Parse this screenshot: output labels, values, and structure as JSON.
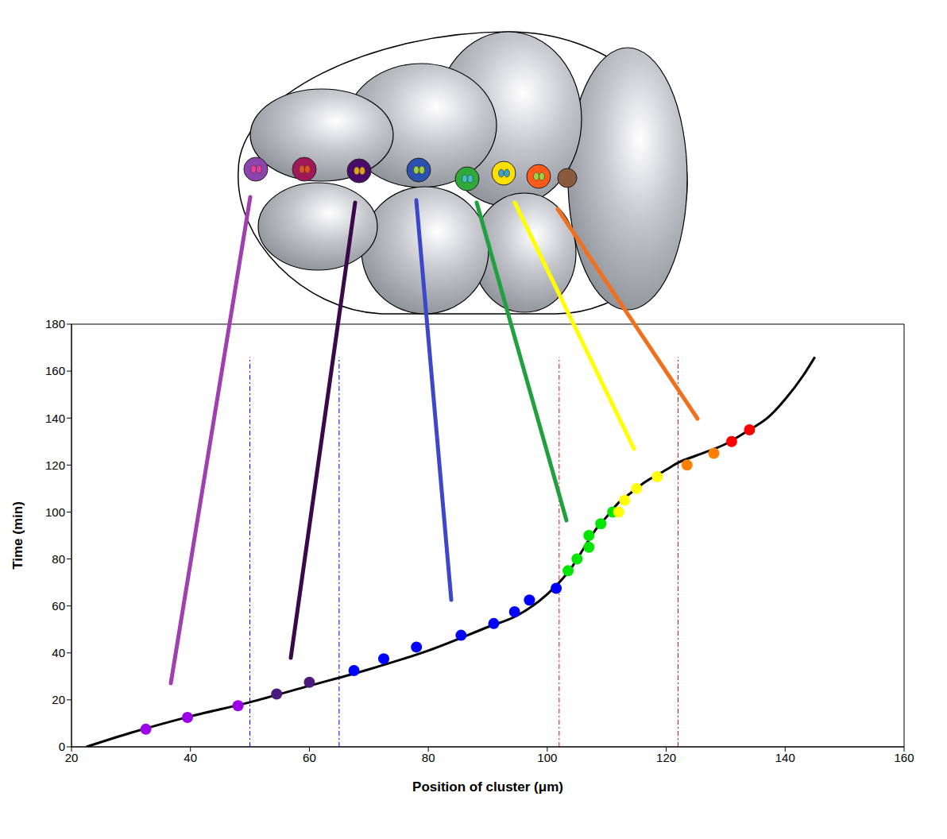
{
  "chart_data": {
    "type": "scatter",
    "x_label": "Position of cluster (μm)",
    "y_label": "Time (min)",
    "xlim": [
      20,
      160
    ],
    "xticks": [
      20,
      40,
      60,
      80,
      100,
      120,
      140,
      160
    ],
    "ylim": [
      0,
      180
    ],
    "yticks": [
      0,
      20,
      40,
      60,
      80,
      100,
      120,
      140,
      160,
      180
    ],
    "grid": false,
    "series": [
      {
        "type": "line",
        "color": "#000000",
        "line_style": "solid",
        "marker": "none",
        "x": [
          22.5,
          30,
          40,
          50,
          60,
          70,
          80,
          90,
          95,
          100,
          102,
          104,
          106,
          108,
          110,
          112,
          114,
          116,
          120,
          122,
          125,
          130,
          134,
          137,
          140,
          143,
          145
        ],
        "values": [
          0,
          6,
          13,
          19,
          26,
          33,
          41,
          51,
          56,
          65,
          70,
          76,
          84,
          92,
          98,
          104,
          108,
          112,
          118,
          121,
          124,
          129,
          135,
          140,
          148,
          158,
          166
        ]
      },
      {
        "type": "scatter",
        "color": "#9b00e8",
        "marker": "circle",
        "x": [
          32.5,
          39.5,
          48
        ],
        "values": [
          7.5,
          12.5,
          17.5
        ]
      },
      {
        "type": "scatter",
        "color": "#4b1c7d",
        "marker": "circle",
        "x": [
          54.5,
          60
        ],
        "values": [
          22.5,
          27.5
        ]
      },
      {
        "type": "scatter",
        "color": "#0000ff",
        "marker": "circle",
        "x": [
          67.5,
          72.5,
          78,
          85.5,
          91,
          94.5,
          97,
          101.5
        ],
        "values": [
          32.5,
          37.5,
          42.5,
          47.5,
          52.5,
          57.5,
          62.5,
          67.5
        ]
      },
      {
        "type": "scatter",
        "color": "#00e600",
        "marker": "circle",
        "x": [
          103.5,
          105,
          107,
          107,
          109,
          111
        ],
        "values": [
          75,
          80,
          85,
          90,
          95,
          100
        ]
      },
      {
        "type": "scatter",
        "color": "#ffff00",
        "marker": "circle",
        "x": [
          112,
          113,
          115,
          118.5
        ],
        "values": [
          100,
          105,
          110,
          115
        ]
      },
      {
        "type": "scatter",
        "color": "#ff8000",
        "marker": "circle",
        "x": [
          123.5,
          128
        ],
        "values": [
          120,
          125
        ]
      },
      {
        "type": "scatter",
        "color": "#ff0000",
        "marker": "circle",
        "x": [
          131,
          134
        ],
        "values": [
          130,
          135
        ]
      }
    ],
    "vertical_lines": [
      {
        "x": 50,
        "ylim": [
          0,
          166
        ],
        "color": "#0000ff",
        "line_style": "dashdot"
      },
      {
        "x": 65,
        "ylim": [
          0,
          166
        ],
        "color": "#0000ff",
        "line_style": "dashdot"
      },
      {
        "x": 102,
        "ylim": [
          0,
          166
        ],
        "color": "#ff0000",
        "line_style": "dashdot"
      },
      {
        "x": 122,
        "ylim": [
          0,
          166
        ],
        "color": "#ff0000",
        "line_style": "dashdot"
      }
    ]
  }
}
